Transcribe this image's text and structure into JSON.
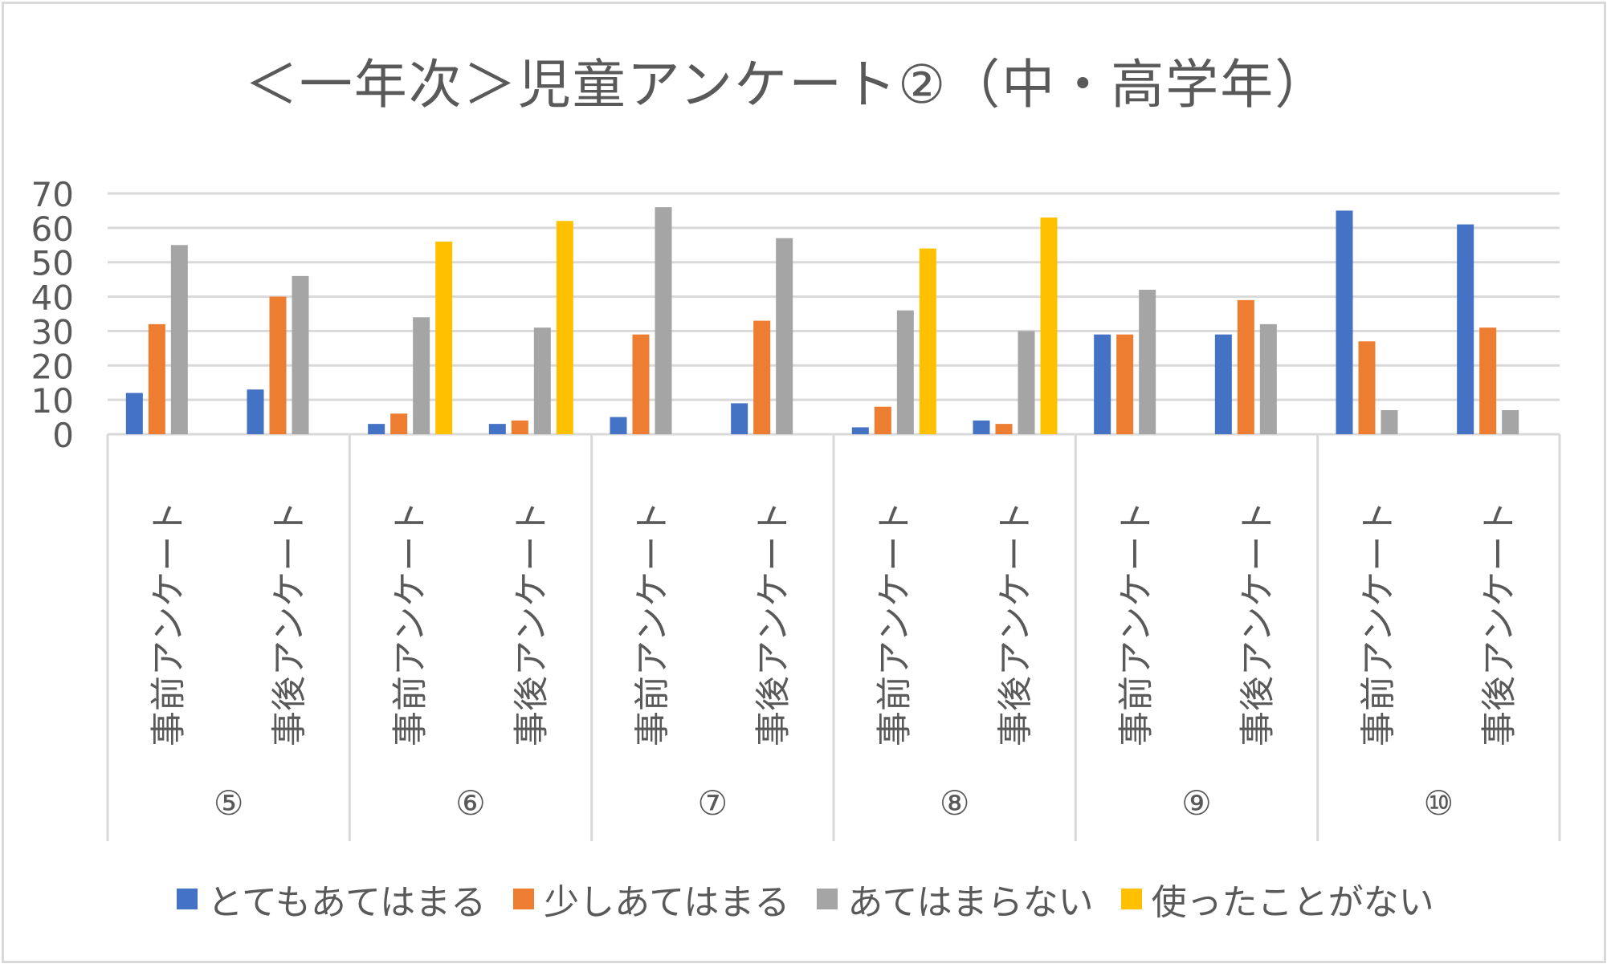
{
  "chart_data": {
    "type": "bar",
    "title": "＜一年次＞児童アンケート②（中・高学年）",
    "xlabel": "",
    "ylabel": "",
    "ylim": [
      0,
      70
    ],
    "yticks": [
      0,
      10,
      20,
      30,
      40,
      50,
      60,
      70
    ],
    "grid": true,
    "legend_position": "bottom",
    "groups": [
      "⑤",
      "⑥",
      "⑦",
      "⑧",
      "⑨",
      "⑩"
    ],
    "categories": [
      "事前アンケート",
      "事後アンケート",
      "事前アンケート",
      "事後アンケート",
      "事前アンケート",
      "事後アンケート",
      "事前アンケート",
      "事後アンケート",
      "事前アンケート",
      "事後アンケート",
      "事前アンケート",
      "事後アンケート"
    ],
    "series": [
      {
        "name": "とてもあてはまる",
        "color": "#4472c4",
        "values": [
          12,
          13,
          3,
          3,
          5,
          9,
          2,
          4,
          29,
          29,
          65,
          61
        ]
      },
      {
        "name": "少しあてはまる",
        "color": "#ed7d31",
        "values": [
          32,
          40,
          6,
          4,
          29,
          33,
          8,
          3,
          29,
          39,
          27,
          31
        ]
      },
      {
        "name": "あてはまらない",
        "color": "#a5a5a5",
        "values": [
          55,
          46,
          34,
          31,
          66,
          57,
          36,
          30,
          42,
          32,
          7,
          7
        ]
      },
      {
        "name": "使ったことがない",
        "color": "#ffc000",
        "values": [
          null,
          null,
          56,
          62,
          null,
          null,
          54,
          63,
          null,
          null,
          null,
          null
        ]
      }
    ]
  }
}
